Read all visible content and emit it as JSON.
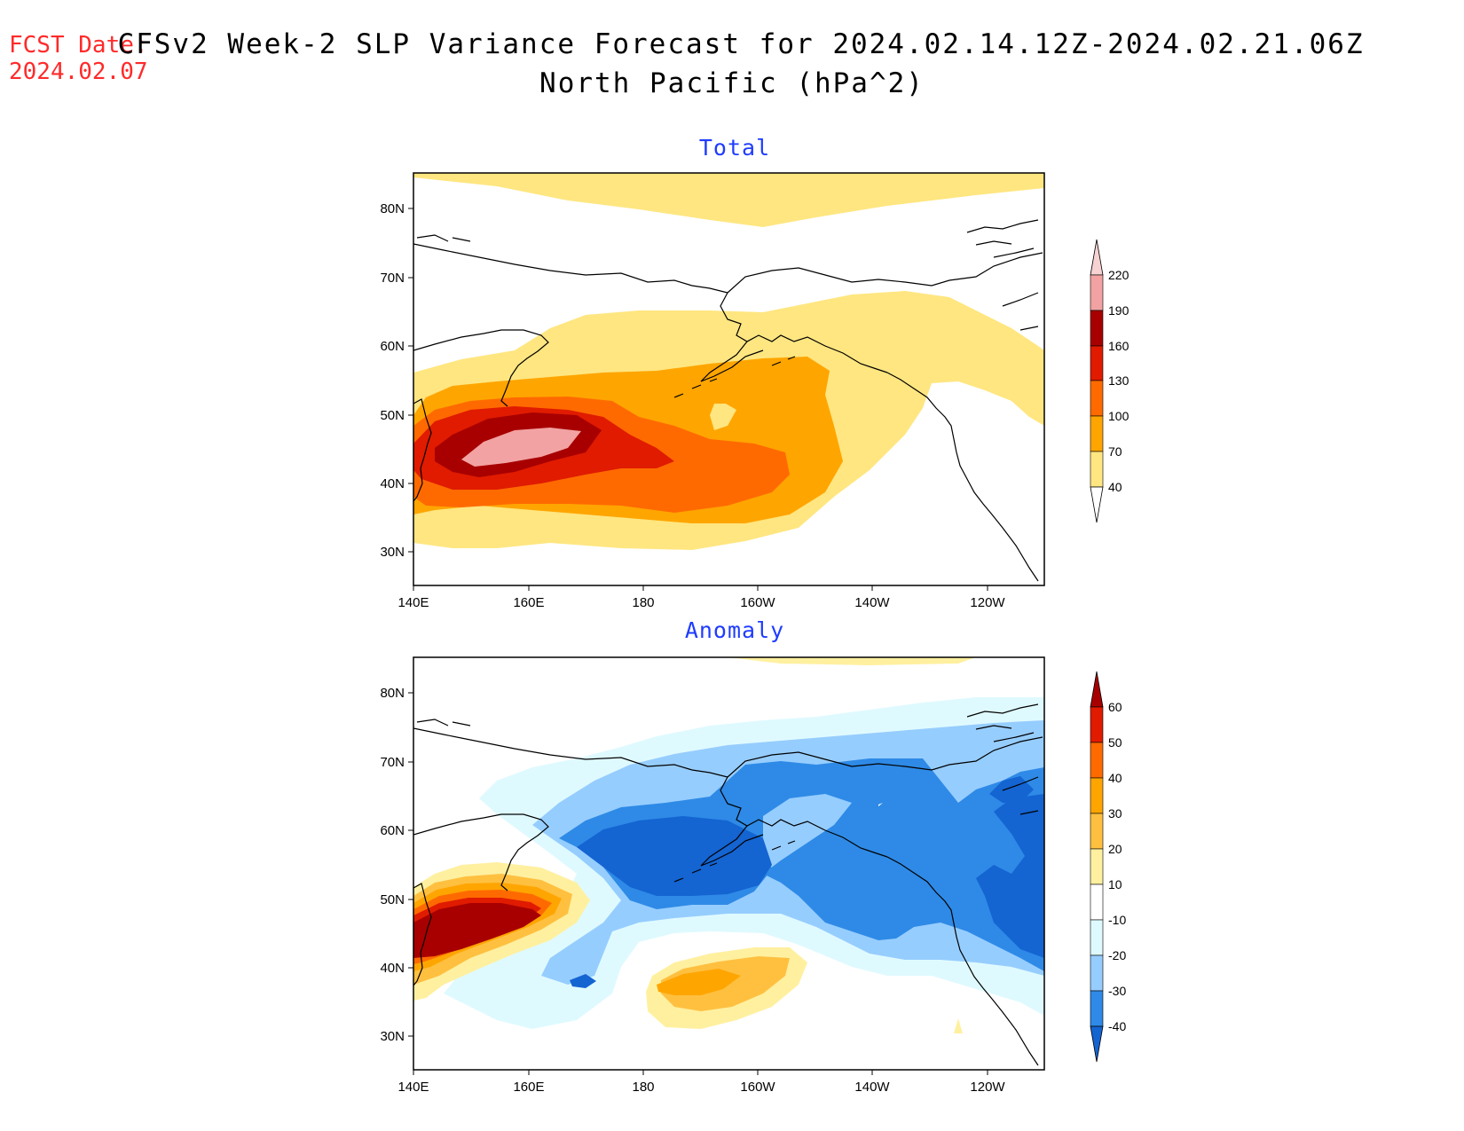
{
  "header": {
    "fcst_label": "FCST Date:",
    "fcst_date": "2024.02.07",
    "title_line1": "CFSv2 Week-2 SLP Variance Forecast for 2024.02.14.12Z-2024.02.21.06Z",
    "title_line2": "North Pacific (hPa^2)"
  },
  "panels": [
    {
      "title": "Total",
      "lat_ticks": [
        "80N",
        "70N",
        "60N",
        "50N",
        "40N",
        "30N"
      ],
      "lon_ticks": [
        "140E",
        "160E",
        "180",
        "160W",
        "140W",
        "120W"
      ],
      "colorbar": {
        "levels": [
          "220",
          "190",
          "160",
          "130",
          "100",
          "70",
          "40"
        ],
        "colors": [
          "#f7d2d2",
          "#f2a2a2",
          "#a80000",
          "#e01b00",
          "#ff6a00",
          "#ffa500",
          "#ffe680"
        ]
      }
    },
    {
      "title": "Anomaly",
      "lat_ticks": [
        "80N",
        "70N",
        "60N",
        "50N",
        "40N",
        "30N"
      ],
      "lon_ticks": [
        "140E",
        "160E",
        "180",
        "160W",
        "140W",
        "120W"
      ],
      "colorbar": {
        "levels": [
          "60",
          "50",
          "40",
          "30",
          "20",
          "10",
          "-10",
          "-20",
          "-30",
          "-40"
        ],
        "colors": [
          "#a80000",
          "#e01b00",
          "#ff6a00",
          "#ffa500",
          "#ffc040",
          "#fff0a0",
          "#ffffff",
          "#dffaff",
          "#96cdff",
          "#2e8ae6",
          "#1464d2"
        ]
      }
    }
  ]
}
